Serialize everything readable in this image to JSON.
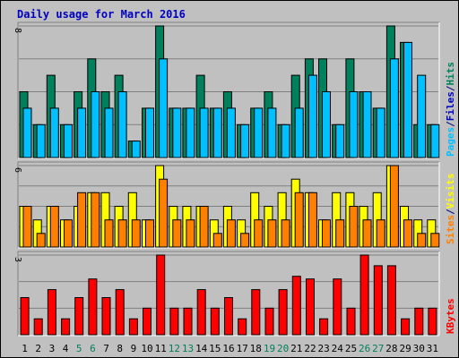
{
  "chart_data": {
    "type": "bar",
    "title": "Daily usage for March 2016",
    "categories": [
      "1",
      "2",
      "3",
      "4",
      "5",
      "6",
      "7",
      "8",
      "9",
      "10",
      "11",
      "12",
      "13",
      "14",
      "15",
      "16",
      "17",
      "18",
      "19",
      "20",
      "21",
      "22",
      "23",
      "24",
      "25",
      "26",
      "27",
      "28",
      "29",
      "30",
      "31"
    ],
    "weekend_days": [
      "5",
      "6",
      "12",
      "13",
      "19",
      "20",
      "26",
      "27"
    ],
    "panels": [
      {
        "name": "hits-files-pages",
        "ymax": 8,
        "tick_label": "8",
        "legend": [
          {
            "text": "Pages",
            "color": "#00c0ff"
          },
          {
            "text": " / ",
            "color": "#000080"
          },
          {
            "text": "Files",
            "color": "#0000c0"
          },
          {
            "text": " / ",
            "color": "#000080"
          },
          {
            "text": "Hits",
            "color": "#00805c"
          }
        ],
        "series": [
          {
            "name": "Hits",
            "color": "#00805c",
            "values": [
              4,
              2,
              5,
              2,
              4,
              6,
              4,
              5,
              1,
              3,
              8,
              3,
              3,
              5,
              3,
              4,
              2,
              3,
              4,
              2,
              5,
              6,
              6,
              2,
              6,
              4,
              3,
              8,
              7,
              2,
              2
            ]
          },
          {
            "name": "Pages",
            "color": "#00c0ff",
            "values": [
              3,
              2,
              3,
              2,
              3,
              4,
              3,
              4,
              1,
              3,
              6,
              3,
              3,
              3,
              3,
              3,
              2,
              3,
              3,
              2,
              3,
              5,
              4,
              2,
              4,
              4,
              3,
              6,
              7,
              5,
              2
            ]
          }
        ]
      },
      {
        "name": "visits-sites",
        "ymax": 6,
        "tick_label": "6",
        "legend": [
          {
            "text": "Sites",
            "color": "#ff8000"
          },
          {
            "text": " / ",
            "color": "#000080"
          },
          {
            "text": "Visits",
            "color": "#ffff00"
          }
        ],
        "series": [
          {
            "name": "Visits",
            "color": "#ffff00",
            "values": [
              3,
              2,
              3,
              2,
              3,
              4,
              4,
              3,
              4,
              2,
              6,
              3,
              3,
              3,
              2,
              3,
              2,
              4,
              3,
              4,
              5,
              4,
              2,
              4,
              4,
              3,
              4,
              6,
              3,
              2,
              2
            ]
          },
          {
            "name": "Sites",
            "color": "#ff8000",
            "values": [
              3,
              1,
              3,
              2,
              4,
              4,
              2,
              2,
              2,
              2,
              5,
              2,
              2,
              3,
              1,
              2,
              1,
              2,
              2,
              2,
              4,
              4,
              2,
              2,
              3,
              2,
              2,
              6,
              2,
              1,
              1
            ]
          }
        ]
      },
      {
        "name": "kbytes",
        "ymax": 3,
        "tick_label": "3",
        "legend": [
          {
            "text": "KBytes",
            "color": "#ff0000"
          }
        ],
        "series": [
          {
            "name": "KBytes",
            "color": "#ff0000",
            "values": [
              1.4,
              0.6,
              1.7,
              0.6,
              1.4,
              2.1,
              1.4,
              1.7,
              0.6,
              1.0,
              3.0,
              1.0,
              1.0,
              1.7,
              1.0,
              1.4,
              0.6,
              1.7,
              1.0,
              1.7,
              2.2,
              2.1,
              0.6,
              2.1,
              1.0,
              3.0,
              2.6,
              2.6,
              0.6,
              1.0,
              1.0
            ]
          }
        ]
      }
    ]
  }
}
